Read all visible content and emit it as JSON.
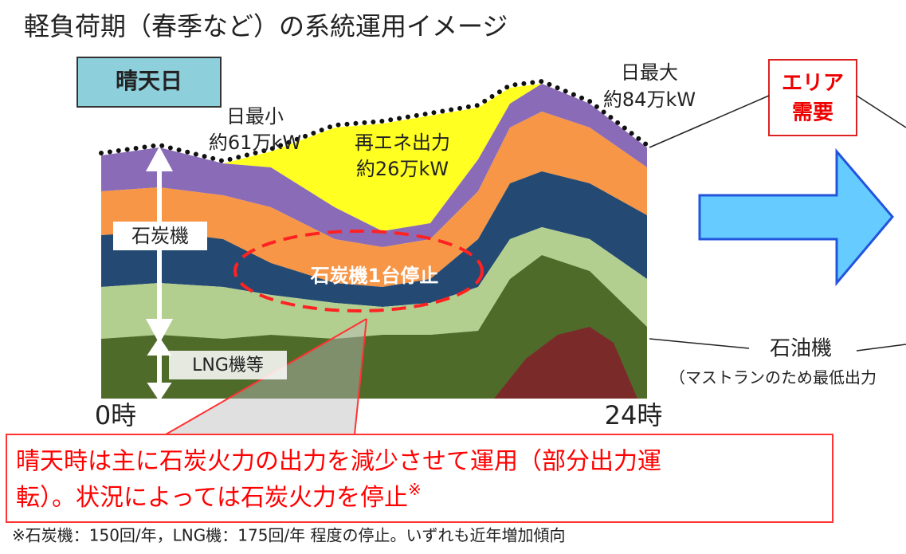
{
  "title": "軽負荷期（春季など）の系統運用イメージ",
  "badge": "晴天日",
  "min_label": [
    "日最小",
    "約61万kW"
  ],
  "renewable_label": [
    "再エネ出力",
    "約26万kW"
  ],
  "max_label": [
    "日最大",
    "約84万kW"
  ],
  "area_demand": [
    "エリア",
    "需要"
  ],
  "coal_label": "石炭機",
  "coal_stop": "石炭機1台停止",
  "lng_label": "LNG機等",
  "oil_label": "石油機",
  "oil_note": "（マストランのため最低出力",
  "x_start": "0時",
  "x_end": "24時",
  "note": {
    "text": [
      "晴天時は主に石炭火力の出力を減少させて運用（部分出力運",
      "転）。状況によっては石炭火力を停止"
    ],
    "mark": "※"
  },
  "footnote": "※石炭機：150回/年，LNG機：175回/年 程度の停止。いずれも近年増加傾向"
}
